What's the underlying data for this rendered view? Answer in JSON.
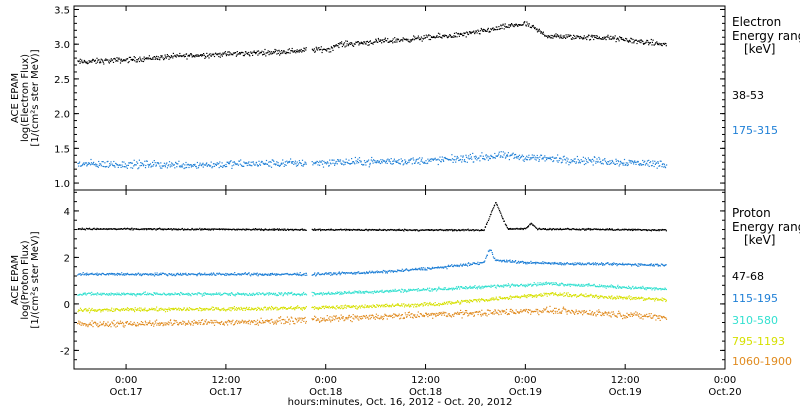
{
  "chart_data": [
    {
      "panel": "electron",
      "type": "scatter",
      "ylabel_lines": [
        "ACE EPAM",
        "log(Electron Flux)",
        "[1/(cm²s ster MeV)]"
      ],
      "y_ticks": [
        "3.5",
        "3.0",
        "2.5",
        "2.0",
        "1.5",
        "1.0"
      ],
      "ylim": [
        0.9,
        3.55
      ],
      "legend_lines": [
        "Electron",
        "Energy ranges",
        "[keV]"
      ],
      "series": [
        {
          "name": "38-53",
          "color": "#000000",
          "profile": [
            [
              0.0,
              2.75
            ],
            [
              0.08,
              2.78
            ],
            [
              0.18,
              2.84
            ],
            [
              0.3,
              2.88
            ],
            [
              0.43,
              2.94
            ],
            [
              0.44,
              3.0
            ],
            [
              0.55,
              3.07
            ],
            [
              0.66,
              3.15
            ],
            [
              0.74,
              3.28
            ],
            [
              0.76,
              3.3
            ],
            [
              0.8,
              3.12
            ],
            [
              0.9,
              3.1
            ],
            [
              1.0,
              3.0
            ]
          ],
          "noise": 0.035
        },
        {
          "name": "175-315",
          "color": "#1e7fd6",
          "profile": [
            [
              0.0,
              1.28
            ],
            [
              0.2,
              1.27
            ],
            [
              0.4,
              1.3
            ],
            [
              0.6,
              1.33
            ],
            [
              0.72,
              1.4
            ],
            [
              0.82,
              1.35
            ],
            [
              1.0,
              1.28
            ]
          ],
          "noise": 0.05
        }
      ]
    },
    {
      "panel": "proton",
      "type": "scatter",
      "ylabel_lines": [
        "ACE EPAM",
        "log(Proton Flux)",
        "[1/(cm²s ster MeV)]"
      ],
      "y_ticks": [
        "4",
        "2",
        "0",
        "-2"
      ],
      "ylim": [
        -2.8,
        4.9
      ],
      "legend_lines": [
        "Proton",
        "Energy ranges",
        "[keV]"
      ],
      "series": [
        {
          "name": "47-68",
          "color": "#000000",
          "profile": [
            [
              0.0,
              3.25
            ],
            [
              0.6,
              3.2
            ],
            [
              0.69,
              3.2
            ],
            [
              0.7,
              3.8
            ],
            [
              0.71,
              4.4
            ],
            [
              0.72,
              3.8
            ],
            [
              0.73,
              3.25
            ],
            [
              0.76,
              3.25
            ],
            [
              0.77,
              3.5
            ],
            [
              0.78,
              3.25
            ],
            [
              1.0,
              3.2
            ]
          ],
          "noise": 0.03
        },
        {
          "name": "115-195",
          "color": "#1e7fd6",
          "profile": [
            [
              0.0,
              1.3
            ],
            [
              0.4,
              1.3
            ],
            [
              0.52,
              1.4
            ],
            [
              0.62,
              1.6
            ],
            [
              0.69,
              1.8
            ],
            [
              0.7,
              2.4
            ],
            [
              0.71,
              1.9
            ],
            [
              0.76,
              1.8
            ],
            [
              0.85,
              1.75
            ],
            [
              1.0,
              1.7
            ]
          ],
          "noise": 0.05
        },
        {
          "name": "310-580",
          "color": "#33e0d0",
          "profile": [
            [
              0.0,
              0.45
            ],
            [
              0.4,
              0.45
            ],
            [
              0.6,
              0.65
            ],
            [
              0.8,
              0.9
            ],
            [
              1.0,
              0.65
            ]
          ],
          "noise": 0.06
        },
        {
          "name": "795-1193",
          "color": "#d6e000",
          "profile": [
            [
              0.0,
              -0.25
            ],
            [
              0.4,
              -0.15
            ],
            [
              0.6,
              0.0
            ],
            [
              0.8,
              0.45
            ],
            [
              1.0,
              0.2
            ]
          ],
          "noise": 0.07
        },
        {
          "name": "1060-1900",
          "color": "#e08a1e",
          "profile": [
            [
              0.0,
              -0.85
            ],
            [
              0.3,
              -0.75
            ],
            [
              0.5,
              -0.55
            ],
            [
              0.8,
              -0.25
            ],
            [
              1.0,
              -0.55
            ]
          ],
          "noise": 0.12
        }
      ]
    }
  ],
  "x_axis": {
    "ticks": [
      {
        "time": "0:00",
        "date": "Oct.17"
      },
      {
        "time": "12:00",
        "date": "Oct.17"
      },
      {
        "time": "0:00",
        "date": "Oct.18"
      },
      {
        "time": "12:00",
        "date": "Oct.18"
      },
      {
        "time": "0:00",
        "date": "Oct.19"
      },
      {
        "time": "12:00",
        "date": "Oct.19"
      },
      {
        "time": "0:00",
        "date": "Oct.20"
      }
    ],
    "title": "hours:minutes, Oct. 16, 2012 - Oct. 20, 2012"
  }
}
